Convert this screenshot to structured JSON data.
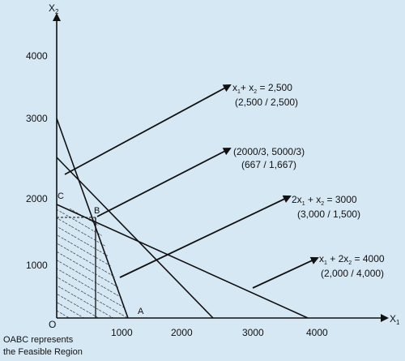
{
  "background_color": "#d7e8f5",
  "line_color": "#111111",
  "axes": {
    "x_label_main": "X",
    "x_label_sub": "1",
    "y_label_main": "X",
    "y_label_sub": "2",
    "origin_label": "O",
    "x_ticks": [
      "1000",
      "2000",
      "3000",
      "4000"
    ],
    "y_ticks": [
      "1000",
      "2000",
      "3000",
      "4000"
    ]
  },
  "points": {
    "a": "A",
    "b": "B",
    "c": "C"
  },
  "callouts": [
    {
      "main_parts": [
        "x",
        "1",
        "+ x",
        "2",
        " = 2,500"
      ],
      "sub": "(2,500 / 2,500)"
    },
    {
      "main_parts": [
        "(2000/3, 5000/3)"
      ],
      "sub": "(667 / 1,667)"
    },
    {
      "main_parts": [
        "2x",
        "1",
        " + x",
        "2",
        " = 3000"
      ],
      "sub": "(3,000 / 1,500)"
    },
    {
      "main_parts": [
        "x",
        "1",
        " + 2x",
        "2",
        " = 4000"
      ],
      "sub": "(2,000 / 4,000)"
    }
  ],
  "feasible_note": [
    "OABC represents",
    "the Feasible Region"
  ]
}
